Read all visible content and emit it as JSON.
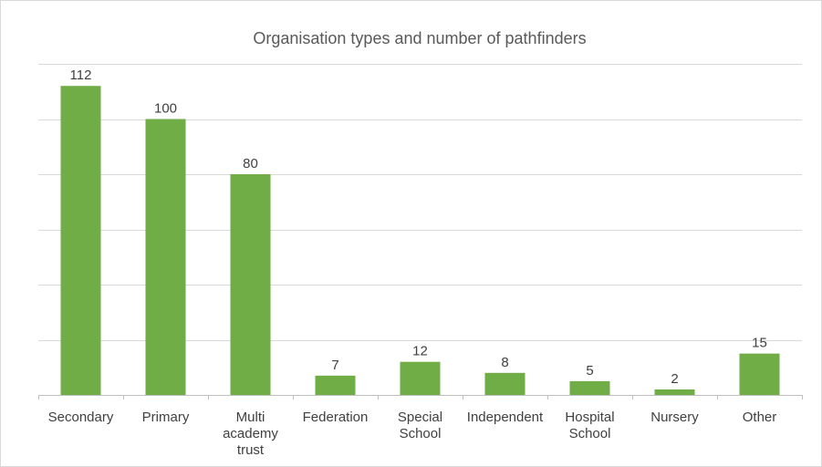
{
  "chart_data": {
    "type": "bar",
    "title": "Organisation types and number of pathfinders",
    "xlabel": "",
    "ylabel": "",
    "categories": [
      [
        "Secondary"
      ],
      [
        "Primary"
      ],
      [
        "Multi",
        "academy",
        "trust"
      ],
      [
        "Federation"
      ],
      [
        "Special",
        "School"
      ],
      [
        "Independent"
      ],
      [
        "Hospital",
        "School"
      ],
      [
        "Nursery"
      ],
      [
        "Other"
      ]
    ],
    "values": [
      112,
      100,
      80,
      7,
      12,
      8,
      5,
      2,
      15
    ],
    "ylim": [
      0,
      120
    ],
    "y_gridline_step": 20,
    "y_tick_labels_shown": false,
    "grid": true,
    "legend": "none",
    "colors": {
      "bar": "#70ad47",
      "gridline": "#d9d9d9",
      "axis": "#bfbfbf",
      "text": "#404040",
      "title": "#595959"
    }
  }
}
